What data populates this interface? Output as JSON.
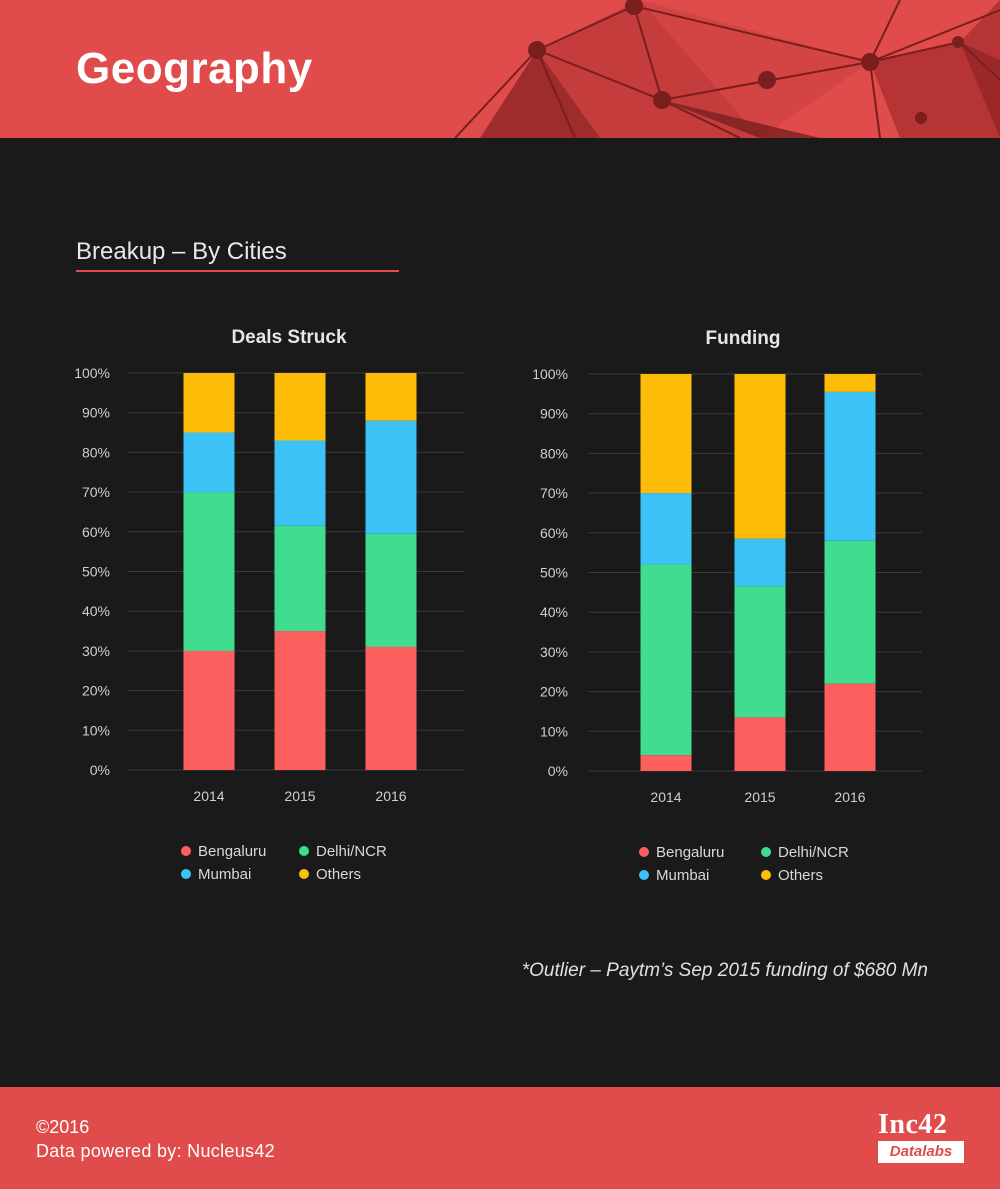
{
  "header": {
    "title": "Geography"
  },
  "section": {
    "title": "Breakup – By Cities"
  },
  "colors": {
    "Bengaluru": "#fd5e5e",
    "Delhi/NCR": "#40dd91",
    "Mumbai": "#3cc2f5",
    "Others": "#fcbc08",
    "header_bg": "#e04c4c",
    "page_bg": "#1b1a1b"
  },
  "legend": [
    "Bengaluru",
    "Delhi/NCR",
    "Mumbai",
    "Others"
  ],
  "chart_data": [
    {
      "type": "bar",
      "stacked": true,
      "title": "Deals Struck",
      "categories": [
        "2014",
        "2015",
        "2016"
      ],
      "ylim": [
        0,
        100
      ],
      "yticks": [
        "0%",
        "10%",
        "20%",
        "30%",
        "40%",
        "50%",
        "60%",
        "70%",
        "80%",
        "90%",
        "100%"
      ],
      "grid": true,
      "legend_position": "bottom",
      "series": [
        {
          "name": "Bengaluru",
          "values": [
            30,
            35,
            31
          ]
        },
        {
          "name": "Delhi/NCR",
          "values": [
            40,
            26.5,
            28.5
          ]
        },
        {
          "name": "Mumbai",
          "values": [
            15,
            21.5,
            28.5
          ]
        },
        {
          "name": "Others",
          "values": [
            15,
            17,
            12
          ]
        }
      ]
    },
    {
      "type": "bar",
      "stacked": true,
      "title": "Funding",
      "categories": [
        "2014",
        "2015",
        "2016"
      ],
      "ylim": [
        0,
        100
      ],
      "yticks": [
        "0%",
        "10%",
        "20%",
        "30%",
        "40%",
        "50%",
        "60%",
        "70%",
        "80%",
        "90%",
        "100%"
      ],
      "grid": true,
      "legend_position": "bottom",
      "series": [
        {
          "name": "Bengaluru",
          "values": [
            4,
            13.5,
            22
          ]
        },
        {
          "name": "Delhi/NCR",
          "values": [
            48,
            33,
            36
          ]
        },
        {
          "name": "Mumbai",
          "values": [
            18,
            12,
            37.5
          ]
        },
        {
          "name": "Others",
          "values": [
            30,
            41.5,
            4.5
          ]
        }
      ]
    }
  ],
  "footnote": "*Outlier – Paytm’s Sep 2015 funding of $680 Mn",
  "footer": {
    "copyright": "©2016",
    "powered_by": "Data powered by: Nucleus42",
    "logo_top": "Inc42",
    "logo_bottom": "Datalabs"
  }
}
